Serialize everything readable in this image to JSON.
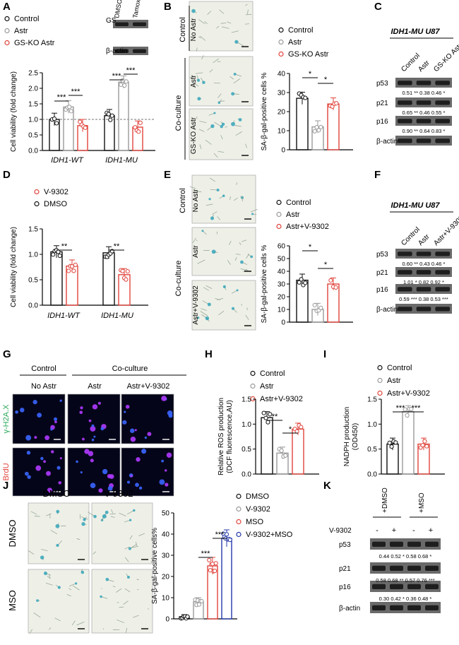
{
  "panel_letters": [
    "A",
    "B",
    "C",
    "D",
    "E",
    "F",
    "G",
    "H",
    "I",
    "J",
    "K"
  ],
  "colors": {
    "black": "#111111",
    "gray": "#9a9a9a",
    "red": "#e0443c",
    "blue": "#2438a8",
    "green": "#2aa85a",
    "micro_bg": "#eef0e7",
    "fluo_bg": "#05051a"
  },
  "panelA": {
    "legend": [
      "Control",
      "Astr",
      "GS-KO Astr"
    ],
    "wb_lanes": [
      "DMSO",
      "Tamoxifen"
    ],
    "wb_rows": [
      "GS",
      "β-actin"
    ],
    "ylabel": "Cell viability (fold change)",
    "groups": [
      "IDH1-WT",
      "IDH1-MU"
    ],
    "stars": [
      "***",
      "***",
      "***",
      "***"
    ],
    "yticks": [
      "0.0",
      "0.5",
      "1.0",
      "1.5",
      "2.0",
      "2.5"
    ],
    "chart_data": {
      "type": "bar",
      "categories": [
        "IDH1-WT",
        "IDH1-MU"
      ],
      "ylim": [
        0,
        2.5
      ],
      "series": [
        {
          "name": "Control",
          "values": [
            1.0,
            1.12
          ]
        },
        {
          "name": "Astr",
          "values": [
            1.4,
            2.2
          ]
        },
        {
          "name": "GS-KO Astr",
          "values": [
            0.8,
            0.75
          ]
        }
      ]
    }
  },
  "panelB": {
    "micro_labels": [
      "No Astr",
      "Astr",
      "GS-KO Astr"
    ],
    "group_labels": [
      "Control",
      "Co-culture"
    ],
    "legend": [
      "Control",
      "Astr",
      "GS-KO Astr"
    ],
    "ylabel": "SA-β-gal-positive cells %",
    "yticks": [
      "0",
      "10",
      "20",
      "30",
      "40"
    ],
    "stars": [
      "*",
      "*"
    ],
    "chart_data": {
      "type": "bar",
      "categories": [
        "Control",
        "Astr",
        "GS-KO Astr"
      ],
      "values": [
        27,
        12,
        24
      ],
      "ylim": [
        0,
        40
      ]
    }
  },
  "panelC": {
    "title": "IDH1-MU U87",
    "lanes": [
      "Control",
      "Astr",
      "GS-KO Astr"
    ],
    "rows": [
      "p53",
      "p21",
      "p16",
      "β-actin"
    ],
    "quant": [
      "0.51 ** 0.38 0.46 *",
      "0.65 ** 0.46 0.55 *",
      "0.90 ** 0.64 0.83 *"
    ]
  },
  "panelD": {
    "legend": [
      "V-9302",
      "DMSO"
    ],
    "ylabel": "Cell viability (fold change)",
    "groups": [
      "IDH1-WT",
      "IDH1-MU"
    ],
    "yticks": [
      "0.0",
      "0.5",
      "1.0",
      "1.5"
    ],
    "stars": [
      "**",
      "**"
    ],
    "chart_data": {
      "type": "bar",
      "categories": [
        "IDH1-WT",
        "IDH1-MU"
      ],
      "ylim": [
        0,
        1.5
      ],
      "series": [
        {
          "name": "DMSO",
          "values": [
            1.05,
            1.03
          ]
        },
        {
          "name": "V-9302",
          "values": [
            0.77,
            0.6
          ]
        }
      ]
    }
  },
  "panelE": {
    "micro_labels": [
      "No Astr",
      "Astr",
      "Astr+V-9302"
    ],
    "group_labels": [
      "Control",
      "Co-culture"
    ],
    "legend": [
      "Control",
      "Astr",
      "Astr+V-9302"
    ],
    "ylabel": "SA-β-gal-positive cells %",
    "yticks": [
      "0",
      "10",
      "20",
      "30",
      "40",
      "50",
      "60"
    ],
    "stars": [
      "*",
      "*"
    ],
    "chart_data": {
      "type": "bar",
      "categories": [
        "Control",
        "Astr",
        "Astr+V-9302"
      ],
      "values": [
        33,
        10,
        30
      ],
      "ylim": [
        0,
        60
      ]
    }
  },
  "panelF": {
    "title": "IDH1-MU U87",
    "lanes": [
      "Control",
      "Astr",
      "Astr+V-9302"
    ],
    "rows": [
      "p53",
      "p21",
      "p16",
      "β-actin"
    ],
    "quant": [
      "0.60 ** 0.43 0.46 *",
      "1.01 * 0.82 0.92 *",
      "0.59 *** 0.38 0.53 ***"
    ]
  },
  "panelG": {
    "group_labels": [
      "Control",
      "Co-culture"
    ],
    "cols": [
      "No Astr",
      "Astr",
      "Astr+V-9302"
    ],
    "rows": [
      "γ-H2A.X",
      "BrdU"
    ]
  },
  "panelH": {
    "legend": [
      "Control",
      "Astr",
      "Astr+V-9302"
    ],
    "ylabel": "Relative ROS production (DCF fluorescence,AU)",
    "yticks": [
      "0.0",
      "0.5",
      "1.0",
      "1.5"
    ],
    "stars": [
      "**",
      "*"
    ],
    "chart_data": {
      "type": "bar",
      "categories": [
        "Control",
        "Astr",
        "Astr+V-9302"
      ],
      "values": [
        1.13,
        0.42,
        0.9
      ],
      "ylim": [
        0,
        1.5
      ]
    }
  },
  "panelI": {
    "legend": [
      "Control",
      "Astr",
      "Astr+V-9302"
    ],
    "ylabel": "NADPH production (OD450)",
    "yticks": [
      "0.0",
      "0.5",
      "1.0",
      "1.5"
    ],
    "stars": [
      "***",
      "***"
    ],
    "chart_data": {
      "type": "bar",
      "categories": [
        "Control",
        "Astr",
        "Astr+V-9302"
      ],
      "values": [
        0.6,
        1.25,
        0.6
      ],
      "ylim": [
        0,
        1.5
      ]
    }
  },
  "panelJ": {
    "cols": [
      "DMSO",
      "V-9302"
    ],
    "rows": [
      "DMSO",
      "MSO"
    ],
    "legend": [
      "DMSO",
      "V-9302",
      "MSO",
      "V-9302+MSO"
    ],
    "ylabel": "SA-β-gal-positive cells%",
    "yticks": [
      "0",
      "10",
      "20",
      "30",
      "40",
      "50"
    ],
    "stars": [
      "***",
      "***"
    ],
    "chart_data": {
      "type": "bar",
      "categories": [
        "DMSO",
        "V-9302",
        "MSO",
        "V-9302+MSO"
      ],
      "values": [
        1,
        8,
        25,
        38
      ],
      "ylim": [
        0,
        50
      ]
    }
  },
  "panelK": {
    "groups": [
      "+DMSO",
      "+MSO"
    ],
    "treatment": "V-9302",
    "signs": [
      "-",
      "+",
      "-",
      "+"
    ],
    "rows": [
      "p53",
      "p21",
      "p16",
      "β-actin"
    ],
    "quant": [
      "0.44 0.52 * 0.58 0.68 *",
      "0.58 0.68 ** 0.57 0.76 ***",
      "0.30 0.42 * 0.36 0.48 *"
    ]
  }
}
